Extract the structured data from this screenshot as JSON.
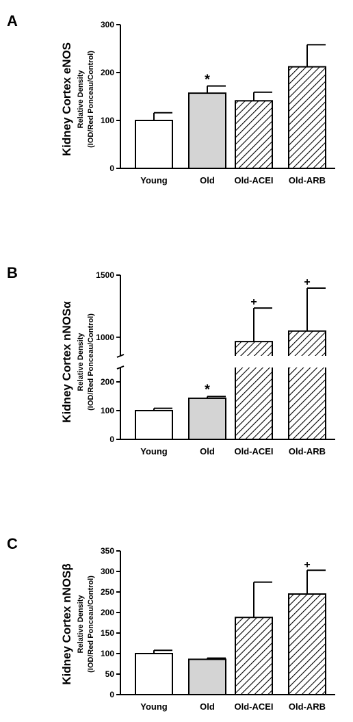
{
  "chart_data": [
    {
      "type": "bar",
      "panel": "A",
      "ylabel": "Kidney Cortex eNOS",
      "ylabel_line2": "Relative Density",
      "ylabel_line3": "(IOD/Red Ponceau/Control)",
      "categories": [
        "Young",
        "Old",
        "Old-ACEI",
        "Old-ARB"
      ],
      "values": [
        100,
        157,
        141,
        212
      ],
      "errors": [
        16,
        15,
        18,
        46
      ],
      "patterns": [
        "white",
        "gray",
        "hatch",
        "hatch"
      ],
      "annotations": [
        "",
        "*",
        "",
        ""
      ],
      "ylim": [
        0,
        300
      ],
      "yticks": [
        "0",
        "100",
        "200",
        "300"
      ]
    },
    {
      "type": "bar",
      "panel": "B",
      "ylabel": "Kidney Cortex nNOSα",
      "ylabel_line2": "Relative Density",
      "ylabel_line3": "(IOD/Red Ponceau/Control)",
      "categories": [
        "Young",
        "Old",
        "Old-ACEI",
        "Old-ARB"
      ],
      "values": [
        100,
        143,
        965,
        1050
      ],
      "errors": [
        8,
        6,
        270,
        345
      ],
      "patterns": [
        "white",
        "gray",
        "hatch",
        "hatch"
      ],
      "annotations": [
        "",
        "*",
        "+",
        "+"
      ],
      "axis_break": true,
      "ylim_lower": [
        0,
        250
      ],
      "ylim_upper": [
        850,
        1500
      ],
      "yticks_lower": [
        "0",
        "100",
        "200"
      ],
      "yticks_upper": [
        "1000",
        "1500"
      ]
    },
    {
      "type": "bar",
      "panel": "C",
      "ylabel": "Kidney Cortex nNOSβ",
      "ylabel_line2": "Relative Density",
      "ylabel_line3": "(IOD/Red Ponceau/Control)",
      "categories": [
        "Young",
        "Old",
        "Old-ACEI",
        "Old-ARB"
      ],
      "values": [
        100,
        86,
        188,
        245
      ],
      "errors": [
        8,
        3,
        86,
        58
      ],
      "patterns": [
        "white",
        "gray",
        "hatch",
        "hatch"
      ],
      "annotations": [
        "",
        "",
        "",
        "+"
      ],
      "ylim": [
        0,
        350
      ],
      "yticks": [
        "0",
        "50",
        "100",
        "150",
        "200",
        "250",
        "300",
        "350"
      ]
    }
  ],
  "colors": {
    "white_bar": "#ffffff",
    "gray_bar": "#d4d4d4",
    "hatch_line": "#000000"
  }
}
